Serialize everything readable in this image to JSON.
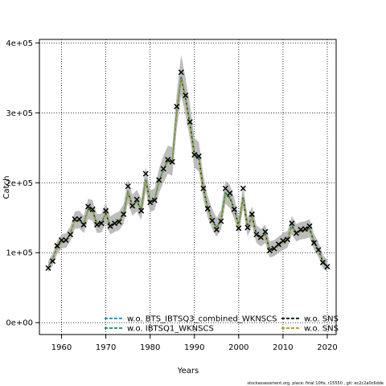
{
  "chart_data": {
    "type": "line",
    "xlabel": "Years",
    "ylabel": "Catch",
    "xlim": [
      1955,
      2022
    ],
    "ylim": [
      -17000,
      405000
    ],
    "grid": true,
    "grid_style": "dotted",
    "x_ticks": [
      1960,
      1970,
      1980,
      1990,
      2000,
      2010,
      2020
    ],
    "x_tick_labels": [
      "1960",
      "1970",
      "1980",
      "1990",
      "2000",
      "2010",
      "2020"
    ],
    "y_ticks": [
      0,
      100000,
      200000,
      300000,
      400000
    ],
    "y_tick_labels": [
      "0e+00",
      "1e+05",
      "2e+05",
      "3e+05",
      "4e+05"
    ],
    "legend_placement": "bottom",
    "legend": [
      {
        "label": "w.o. BTS_IBTSQ3_combined_WKNSCS",
        "color": "#1f9ec9",
        "style": "dashed"
      },
      {
        "label": "w.o. IBTSQ1_WKNSCS",
        "color": "#2ca25f",
        "style": "dashed"
      },
      {
        "label": "w.o. SNS",
        "color": "#003300",
        "style": "dashed"
      },
      {
        "label": "w.o. SNS",
        "color": "#b5a33a",
        "style": "dashed"
      }
    ],
    "band_color": "#b0b0b0",
    "observed_marker": "x",
    "x": [
      1957,
      1958,
      1959,
      1960,
      1961,
      1962,
      1963,
      1964,
      1965,
      1966,
      1967,
      1968,
      1969,
      1970,
      1971,
      1972,
      1973,
      1974,
      1975,
      1976,
      1977,
      1978,
      1979,
      1980,
      1981,
      1982,
      1983,
      1984,
      1985,
      1986,
      1987,
      1988,
      1989,
      1990,
      1991,
      1992,
      1993,
      1994,
      1995,
      1996,
      1997,
      1998,
      1999,
      2000,
      2001,
      2002,
      2003,
      2004,
      2005,
      2006,
      2007,
      2008,
      2009,
      2010,
      2011,
      2012,
      2013,
      2014,
      2015,
      2016,
      2017,
      2018,
      2019,
      2020
    ],
    "observed": [
      78000,
      88000,
      110000,
      118000,
      118000,
      126000,
      148000,
      148000,
      140000,
      166000,
      162000,
      140000,
      142000,
      160000,
      138000,
      142000,
      144000,
      155000,
      195000,
      167000,
      176000,
      160000,
      213000,
      172000,
      175000,
      204000,
      220000,
      233000,
      230000,
      309000,
      358000,
      325000,
      287000,
      240000,
      238000,
      192000,
      163000,
      146000,
      133000,
      145000,
      192000,
      185000,
      162000,
      135000,
      192000,
      136000,
      155000,
      126000,
      122000,
      130000,
      103000,
      106000,
      112000,
      117000,
      119000,
      142000,
      128000,
      133000,
      134000,
      138000,
      114000,
      104000,
      86000,
      80000
    ],
    "series": [
      {
        "name": "w.o. BTS_IBTSQ3_combined_WKNSCS",
        "values": [
          80000,
          91000,
          108000,
          116000,
          117000,
          128000,
          146000,
          147000,
          141000,
          162000,
          160000,
          142000,
          143000,
          156000,
          139000,
          143000,
          146000,
          155000,
          187000,
          168000,
          174000,
          162000,
          205000,
          173000,
          176000,
          202000,
          219000,
          232000,
          230000,
          300000,
          352000,
          322000,
          285000,
          242000,
          236000,
          193000,
          165000,
          148000,
          136000,
          147000,
          186000,
          180000,
          163000,
          139000,
          180000,
          137000,
          152000,
          127000,
          122000,
          127000,
          105000,
          107000,
          112000,
          116000,
          119000,
          139000,
          129000,
          132000,
          133000,
          135000,
          116000,
          105000,
          88000,
          81000
        ]
      },
      {
        "name": "w.o. IBTSQ1_WKNSCS",
        "values": [
          80000,
          90000,
          107000,
          115000,
          116000,
          127000,
          145000,
          146000,
          140000,
          161000,
          159000,
          141000,
          142000,
          155000,
          138000,
          142000,
          145000,
          154000,
          186000,
          167000,
          173000,
          161000,
          204000,
          172000,
          175000,
          201000,
          218000,
          231000,
          229000,
          299000,
          351000,
          321000,
          284000,
          241000,
          235000,
          192000,
          164000,
          147000,
          135000,
          146000,
          185000,
          179000,
          162000,
          138000,
          179000,
          136000,
          151000,
          126000,
          121000,
          126000,
          104000,
          106000,
          111000,
          115000,
          118000,
          138000,
          128000,
          131000,
          132000,
          134000,
          115000,
          104000,
          87000,
          80000
        ]
      },
      {
        "name": "w.o. SNS",
        "values": [
          79000,
          90000,
          107000,
          115000,
          117000,
          127000,
          146000,
          146000,
          140000,
          162000,
          160000,
          141000,
          142000,
          156000,
          138000,
          142000,
          145000,
          154000,
          186000,
          167000,
          173000,
          161000,
          204000,
          172000,
          175000,
          201000,
          218000,
          231000,
          229000,
          298000,
          350000,
          320000,
          283000,
          240000,
          234000,
          192000,
          164000,
          147000,
          135000,
          146000,
          184000,
          178000,
          162000,
          138000,
          178000,
          136000,
          151000,
          126000,
          121000,
          126000,
          104000,
          106000,
          111000,
          115000,
          118000,
          138000,
          128000,
          131000,
          132000,
          134000,
          115000,
          104000,
          87000,
          80000
        ]
      },
      {
        "name": "w.o. SNS",
        "values": [
          79000,
          89000,
          106000,
          114000,
          116000,
          126000,
          145000,
          145000,
          139000,
          161000,
          159000,
          140000,
          141000,
          155000,
          137000,
          141000,
          144000,
          153000,
          185000,
          166000,
          172000,
          160000,
          203000,
          171000,
          174000,
          200000,
          217000,
          230000,
          228000,
          297000,
          349000,
          319000,
          282000,
          239000,
          233000,
          191000,
          163000,
          146000,
          134000,
          145000,
          183000,
          177000,
          161000,
          137000,
          177000,
          135000,
          150000,
          125000,
          120000,
          125000,
          103000,
          105000,
          110000,
          114000,
          117000,
          137000,
          127000,
          130000,
          131000,
          133000,
          114000,
          103000,
          86000,
          79000
        ]
      }
    ],
    "band_lower": [
      72000,
      82000,
      98000,
      106000,
      107000,
      117000,
      134000,
      135000,
      128000,
      148000,
      146000,
      128000,
      129000,
      142000,
      126000,
      130000,
      132000,
      141000,
      171000,
      153000,
      159000,
      147000,
      188000,
      158000,
      161000,
      185000,
      200000,
      213000,
      210000,
      276000,
      325000,
      297000,
      262000,
      222000,
      216000,
      176000,
      150000,
      134000,
      123000,
      133000,
      170000,
      164000,
      148000,
      126000,
      164000,
      123000,
      138000,
      114000,
      109000,
      114000,
      93000,
      95000,
      100000,
      104000,
      107000,
      126000,
      116000,
      119000,
      120000,
      122000,
      104000,
      94000,
      78000,
      72000
    ],
    "band_upper": [
      88000,
      99000,
      117000,
      126000,
      128000,
      138000,
      159000,
      160000,
      153000,
      177000,
      175000,
      155000,
      156000,
      171000,
      152000,
      156000,
      159000,
      169000,
      204000,
      183000,
      190000,
      177000,
      223000,
      189000,
      192000,
      220000,
      239000,
      253000,
      251000,
      327000,
      383000,
      350000,
      311000,
      264000,
      258000,
      211000,
      181000,
      163000,
      150000,
      161000,
      203000,
      197000,
      178000,
      152000,
      196000,
      150000,
      166000,
      139000,
      134000,
      140000,
      116000,
      118000,
      123000,
      128000,
      131000,
      152000,
      141000,
      144000,
      145000,
      148000,
      127000,
      115000,
      97000,
      89000
    ]
  },
  "footer": "stockassessment.org, place: final 10fix, r15550 , git: ec2c2a0c6dde"
}
